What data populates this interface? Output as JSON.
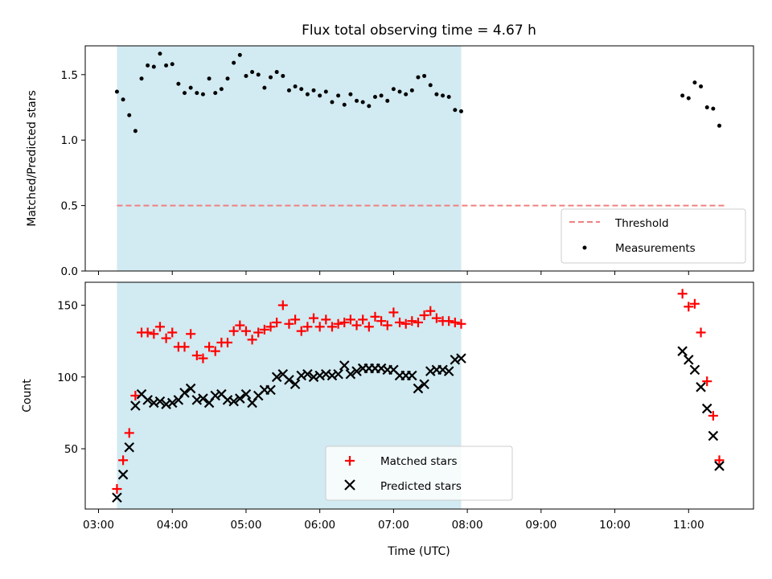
{
  "chart_data": [
    {
      "type": "scatter",
      "title": "Flux total observing time = 4.67 h",
      "ylabel": "Matched/Predicted stars",
      "xlabel": "",
      "ylim": [
        0,
        1.72
      ],
      "xlim_hours": [
        2.82,
        11.88
      ],
      "yticks": [
        0.0,
        0.5,
        1.0,
        1.5
      ],
      "ytick_labels": [
        "0.0",
        "0.5",
        "1.0",
        "1.5"
      ],
      "shaded_span": [
        "03:15",
        "07:55"
      ],
      "shade_color": "#add8e6",
      "threshold": {
        "name": "Threshold",
        "value": 0.5,
        "x_range": [
          "03:15",
          "11:30"
        ],
        "color": "#f08080"
      },
      "legend_position": "lower-right",
      "legend": [
        "Threshold",
        "Measurements"
      ],
      "series": [
        {
          "name": "Measurements",
          "color": "#000000",
          "x": [
            "03:15",
            "03:20",
            "03:25",
            "03:30",
            "03:35",
            "03:40",
            "03:45",
            "03:50",
            "03:55",
            "04:00",
            "04:05",
            "04:10",
            "04:15",
            "04:20",
            "04:25",
            "04:30",
            "04:35",
            "04:40",
            "04:45",
            "04:50",
            "04:55",
            "05:00",
            "05:05",
            "05:10",
            "05:15",
            "05:20",
            "05:25",
            "05:30",
            "05:35",
            "05:40",
            "05:45",
            "05:50",
            "05:55",
            "06:00",
            "06:05",
            "06:10",
            "06:15",
            "06:20",
            "06:25",
            "06:30",
            "06:35",
            "06:40",
            "06:45",
            "06:50",
            "06:55",
            "07:00",
            "07:05",
            "07:10",
            "07:15",
            "07:20",
            "07:25",
            "07:30",
            "07:35",
            "07:40",
            "07:45",
            "07:50",
            "07:55",
            "10:55",
            "11:00",
            "11:05",
            "11:10",
            "11:15",
            "11:20",
            "11:25"
          ],
          "values": [
            1.37,
            1.31,
            1.19,
            1.07,
            1.47,
            1.57,
            1.56,
            1.66,
            1.57,
            1.58,
            1.43,
            1.36,
            1.4,
            1.36,
            1.35,
            1.47,
            1.36,
            1.39,
            1.47,
            1.59,
            1.65,
            1.49,
            1.52,
            1.5,
            1.4,
            1.48,
            1.52,
            1.49,
            1.38,
            1.41,
            1.39,
            1.35,
            1.38,
            1.34,
            1.37,
            1.29,
            1.34,
            1.27,
            1.35,
            1.3,
            1.29,
            1.26,
            1.33,
            1.34,
            1.3,
            1.39,
            1.37,
            1.35,
            1.38,
            1.48,
            1.49,
            1.42,
            1.35,
            1.34,
            1.33,
            1.23,
            1.22,
            1.34,
            1.32,
            1.44,
            1.41,
            1.25,
            1.24,
            1.11
          ]
        }
      ]
    },
    {
      "type": "scatter",
      "title": "",
      "xlabel": "Time (UTC)",
      "ylabel": "Count",
      "ylim": [
        8,
        166
      ],
      "xlim_hours": [
        2.82,
        11.88
      ],
      "yticks": [
        50,
        100,
        150
      ],
      "ytick_labels": [
        "50",
        "100",
        "150"
      ],
      "xtick_labels": [
        "03:00",
        "04:00",
        "05:00",
        "06:00",
        "07:00",
        "08:00",
        "09:00",
        "10:00",
        "11:00"
      ],
      "shaded_span": [
        "03:15",
        "07:55"
      ],
      "shade_color": "#add8e6",
      "legend_position": "lower-center",
      "legend": [
        "Matched stars",
        "Predicted stars"
      ],
      "series": [
        {
          "name": "Matched stars",
          "color": "#ff0000",
          "marker": "plus",
          "x": [
            "03:15",
            "03:20",
            "03:25",
            "03:30",
            "03:35",
            "03:40",
            "03:45",
            "03:50",
            "03:55",
            "04:00",
            "04:05",
            "04:10",
            "04:15",
            "04:20",
            "04:25",
            "04:30",
            "04:35",
            "04:40",
            "04:45",
            "04:50",
            "04:55",
            "05:00",
            "05:05",
            "05:10",
            "05:15",
            "05:20",
            "05:25",
            "05:30",
            "05:35",
            "05:40",
            "05:45",
            "05:50",
            "05:55",
            "06:00",
            "06:05",
            "06:10",
            "06:15",
            "06:20",
            "06:25",
            "06:30",
            "06:35",
            "06:40",
            "06:45",
            "06:50",
            "06:55",
            "07:00",
            "07:05",
            "07:10",
            "07:15",
            "07:20",
            "07:25",
            "07:30",
            "07:35",
            "07:40",
            "07:45",
            "07:50",
            "07:55",
            "10:55",
            "11:00",
            "11:05",
            "11:10",
            "11:15",
            "11:20",
            "11:25"
          ],
          "values": [
            22,
            42,
            61,
            87,
            131,
            131,
            130,
            135,
            127,
            131,
            121,
            121,
            130,
            115,
            113,
            121,
            118,
            124,
            124,
            132,
            136,
            132,
            126,
            131,
            133,
            135,
            138,
            150,
            137,
            140,
            132,
            135,
            141,
            135,
            140,
            135,
            137,
            138,
            140,
            136,
            140,
            135,
            142,
            139,
            136,
            145,
            138,
            137,
            139,
            138,
            143,
            146,
            141,
            139,
            139,
            138,
            137,
            158,
            149,
            151,
            131,
            97,
            73,
            42
          ]
        },
        {
          "name": "Predicted stars",
          "color": "#000000",
          "marker": "x",
          "x": [
            "03:15",
            "03:20",
            "03:25",
            "03:30",
            "03:35",
            "03:40",
            "03:45",
            "03:50",
            "03:55",
            "04:00",
            "04:05",
            "04:10",
            "04:15",
            "04:20",
            "04:25",
            "04:30",
            "04:35",
            "04:40",
            "04:45",
            "04:50",
            "04:55",
            "05:00",
            "05:05",
            "05:10",
            "05:15",
            "05:20",
            "05:25",
            "05:30",
            "05:35",
            "05:40",
            "05:45",
            "05:50",
            "05:55",
            "06:00",
            "06:05",
            "06:10",
            "06:15",
            "06:20",
            "06:25",
            "06:30",
            "06:35",
            "06:40",
            "06:45",
            "06:50",
            "06:55",
            "07:00",
            "07:05",
            "07:10",
            "07:15",
            "07:20",
            "07:25",
            "07:30",
            "07:35",
            "07:40",
            "07:45",
            "07:50",
            "07:55",
            "10:55",
            "11:00",
            "11:05",
            "11:10",
            "11:15",
            "11:20",
            "11:25"
          ],
          "values": [
            16,
            32,
            51,
            80,
            88,
            84,
            82,
            83,
            81,
            82,
            84,
            89,
            92,
            84,
            85,
            82,
            87,
            88,
            84,
            83,
            85,
            88,
            82,
            87,
            91,
            91,
            100,
            102,
            98,
            95,
            101,
            102,
            100,
            101,
            102,
            101,
            102,
            108,
            102,
            104,
            106,
            106,
            106,
            106,
            105,
            105,
            101,
            101,
            101,
            92,
            95,
            104,
            105,
            105,
            104,
            112,
            113,
            118,
            112,
            105,
            93,
            78,
            59,
            38
          ]
        }
      ]
    }
  ]
}
